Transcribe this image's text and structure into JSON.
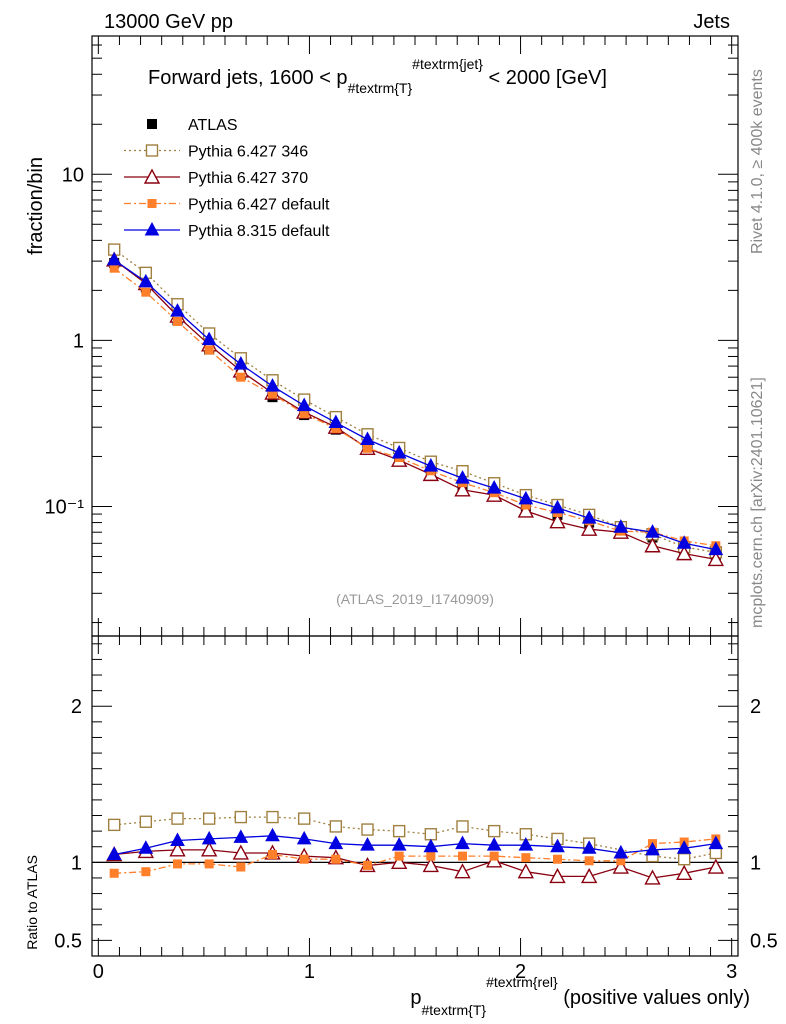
{
  "header": {
    "energy_label": "13000 GeV pp",
    "category_label": "Jets",
    "side_label_top": "Rivet 4.1.0, ≥ 400k events",
    "side_label_bottom": "mcplots.cern.ch [arXiv:2401.10621]",
    "analysis_label": "(ATLAS_2019_I1740909)"
  },
  "chart_data": {
    "type": "line",
    "title_parts": {
      "prefix": "Forward jets, 1600 < p",
      "sub": "#textrm{T}",
      "sup": "#textrm{jet}",
      "suffix": " < 2000 [GeV]"
    },
    "xlabel_parts": {
      "main": "p",
      "sub": "#textrm{T}",
      "sup": "#textrm{rel}",
      "suffix": " (positive values only)"
    },
    "ylabel_main": "fraction/bin",
    "ylabel_ratio": "Ratio to ATLAS",
    "xlim": [
      -0.03,
      3.03
    ],
    "ylim_main_log": [
      0.0166,
      68
    ],
    "ylim_ratio": [
      0.4,
      2.45
    ],
    "x_ticks": [
      0,
      1,
      2,
      3
    ],
    "x_tick_labels": [
      "0",
      "1",
      "2",
      "3"
    ],
    "y_ticks_main": [
      0.1,
      1,
      10
    ],
    "y_tick_labels_main": [
      "10⁻¹",
      "1",
      "10"
    ],
    "y_ticks_ratio": [
      0.5,
      1,
      2
    ],
    "y_tick_labels_ratio": [
      "0.5",
      "1",
      "2"
    ],
    "x": [
      0.075,
      0.225,
      0.375,
      0.525,
      0.675,
      0.825,
      0.975,
      1.125,
      1.275,
      1.425,
      1.575,
      1.725,
      1.875,
      2.025,
      2.175,
      2.325,
      2.475,
      2.625,
      2.775,
      2.925
    ],
    "data": {
      "name": "ATLAS",
      "values": [
        2.92,
        2.08,
        1.32,
        0.88,
        0.62,
        0.455,
        0.355,
        0.29,
        0.228,
        0.19,
        0.158,
        0.133,
        0.116,
        0.1,
        0.089,
        0.08,
        0.072,
        0.065,
        0.055,
        0.05
      ]
    },
    "series": [
      {
        "name": "Pythia 6.427 346",
        "color": "#a08040",
        "style": "dotted",
        "marker": "open-square",
        "values": [
          3.52,
          2.55,
          1.65,
          1.1,
          0.78,
          0.575,
          0.44,
          0.345,
          0.272,
          0.225,
          0.186,
          0.163,
          0.138,
          0.117,
          0.102,
          0.089,
          0.075,
          0.068,
          0.057,
          0.053
        ]
      },
      {
        "name": "Pythia 6.427 370",
        "color": "#8b0010",
        "style": "solid",
        "marker": "open-triangle",
        "values": [
          3.05,
          2.2,
          1.4,
          0.94,
          0.655,
          0.482,
          0.37,
          0.3,
          0.224,
          0.19,
          0.156,
          0.126,
          0.117,
          0.094,
          0.081,
          0.073,
          0.07,
          0.058,
          0.052,
          0.048
        ]
      },
      {
        "name": "Pythia 6.427 default",
        "color": "#ff7f2a",
        "style": "dashdot",
        "marker": "filled-square",
        "values": [
          2.72,
          1.95,
          1.3,
          0.875,
          0.6,
          0.475,
          0.362,
          0.295,
          0.224,
          0.197,
          0.164,
          0.139,
          0.121,
          0.102,
          0.092,
          0.082,
          0.071,
          0.07,
          0.062,
          0.058
        ]
      },
      {
        "name": "Pythia 8.315 default",
        "color": "#0000e0",
        "style": "solid",
        "marker": "filled-triangle",
        "values": [
          3.05,
          2.25,
          1.5,
          1.01,
          0.72,
          0.53,
          0.405,
          0.32,
          0.253,
          0.21,
          0.175,
          0.148,
          0.129,
          0.111,
          0.098,
          0.085,
          0.075,
          0.07,
          0.06,
          0.055
        ]
      }
    ],
    "ratios": {
      "Pythia 6.427 346": [
        1.24,
        1.26,
        1.28,
        1.28,
        1.29,
        1.29,
        1.28,
        1.23,
        1.21,
        1.2,
        1.18,
        1.23,
        1.2,
        1.18,
        1.15,
        1.12,
        null,
        1.04,
        1.02,
        1.06
      ],
      "Pythia 6.427 370": [
        1.05,
        1.07,
        1.08,
        1.08,
        1.06,
        1.06,
        1.04,
        1.03,
        0.98,
        1.0,
        0.98,
        0.94,
        1.01,
        0.94,
        0.91,
        0.91,
        0.97,
        0.9,
        0.93,
        0.97
      ],
      "Pythia 6.427 default": [
        0.93,
        0.94,
        0.99,
        0.99,
        0.97,
        1.05,
        1.02,
        1.02,
        0.98,
        1.04,
        1.04,
        1.04,
        1.04,
        1.03,
        1.02,
        1.01,
        1.01,
        1.12,
        1.13,
        1.15
      ],
      "Pythia 8.315 default": [
        1.05,
        1.09,
        1.14,
        1.15,
        1.16,
        1.17,
        1.15,
        1.12,
        1.11,
        1.11,
        1.1,
        1.12,
        1.11,
        1.11,
        1.1,
        1.09,
        1.06,
        1.08,
        1.09,
        1.12
      ]
    }
  }
}
